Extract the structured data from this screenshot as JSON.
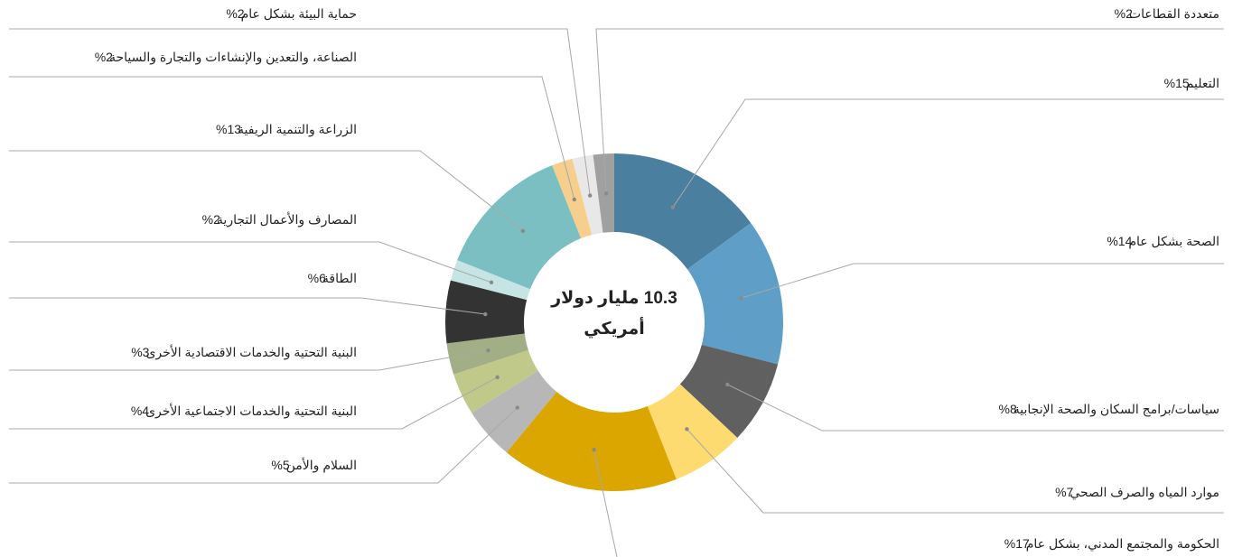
{
  "chart_data": {
    "type": "donut",
    "center_label": [
      "10.3 مليار دولار",
      "أمريكي"
    ],
    "categories": [
      "التعليم",
      "الصحة بشكل عام",
      "سياسات/برامج السكان والصحة الإنجابية",
      "موارد المياه والصرف الصحي",
      "الحكومة والمجتمع المدني، بشكل عام",
      "السلام والأمن",
      "البنية التحتية والخدمات الاجتماعية الأخرى",
      "البنية التحتية والخدمات الاقتصادية الأخرى",
      "الطاقة",
      "المصارف والأعمال التجارية",
      "الزراعة والتنمية الريفية",
      "الصناعة، والتعدين والإنشاءات والتجارة والسياحة",
      "حماية البيئة بشكل عام",
      "متعددة القطاعات"
    ],
    "values": [
      15,
      14,
      8,
      7,
      17,
      5,
      4,
      3,
      6,
      2,
      13,
      2,
      2,
      2
    ],
    "value_labels": [
      "15%",
      "14%",
      "8%",
      "7%",
      "17%",
      "5%",
      "4%",
      "3%",
      "6%",
      "2%",
      "13%",
      "2%",
      "2%",
      "2%"
    ],
    "colors": [
      "#4a7fa0",
      "#5f9ec6",
      "#606060",
      "#fddb70",
      "#dba600",
      "#b7b7b7",
      "#c0c98a",
      "#a2ae86",
      "#333333",
      "#c6e4e4",
      "#7bbfc2",
      "#f5cf8b",
      "#e8e8e8",
      "#a0a0a0"
    ]
  }
}
